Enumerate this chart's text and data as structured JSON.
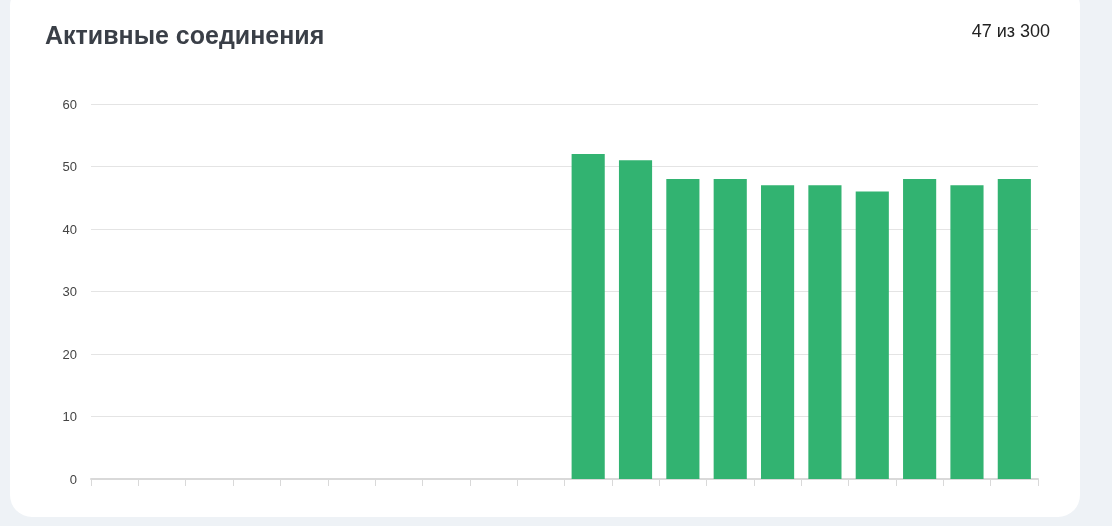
{
  "chart_data": {
    "type": "bar",
    "title": "Активные соединения",
    "annotations": [
      "47 из 300"
    ],
    "categories": [
      null,
      null,
      null,
      null,
      null,
      null,
      null,
      null,
      null,
      null,
      null,
      null,
      null,
      null,
      null,
      null,
      null,
      null,
      null,
      null
    ],
    "values": [
      null,
      null,
      null,
      null,
      null,
      null,
      null,
      null,
      null,
      null,
      52,
      51,
      48,
      48,
      47,
      47,
      46,
      48,
      47,
      48
    ],
    "color": "#32b371",
    "ylim": [
      0,
      60
    ],
    "yticks": [
      0,
      10,
      20,
      30,
      40,
      50,
      60
    ],
    "grid": "y",
    "tick_labels": "y"
  }
}
